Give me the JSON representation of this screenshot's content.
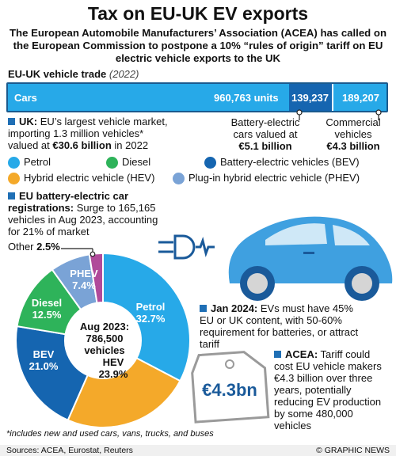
{
  "title": "Tax on EU-UK EV exports",
  "subtitle": "The European Automobile Manufacturers’ Association (ACEA) has called on the European Commission to postpone a 10% “rules of origin” tariff on EU electric vehicle exports to the UK",
  "trade": {
    "heading": "EU-UK vehicle trade",
    "year": "(2022)",
    "cars_label": "Cars",
    "cars_value": "960,763 units",
    "bev_value": "139,237",
    "commercial_value": "189,207",
    "bev_note_line1": "Battery-electric",
    "bev_note_line2": "cars valued at",
    "bev_note_value": "€5.1 billion",
    "comm_note_line1": "Commercial",
    "comm_note_line2": "vehicles",
    "comm_note_value": "€4.3 billion"
  },
  "uk": {
    "label": "UK:",
    "line1": "EU’s largest vehicle market,",
    "line2": "importing 1.3 million vehicles*",
    "line3_prefix": "valued at ",
    "line3_value": "€30.6 billion",
    "line3_suffix": " in 2022"
  },
  "legend": {
    "petrol": "Petrol",
    "diesel": "Diesel",
    "bev": "Battery-electric vehicles (BEV)",
    "hev": "Hybrid electric vehicle (HEV)",
    "phev": "Plug-in hybrid electric vehicle (PHEV)"
  },
  "colors": {
    "petrol": "#27a9e8",
    "diesel": "#2eb35a",
    "bev": "#1565b0",
    "hev": "#f4a92a",
    "phev": "#7aa3d6",
    "other": "#b04a9a"
  },
  "registrations": {
    "label_line1": "EU battery-electric car",
    "label_line2": "registrations:",
    "line2_rest": " Surge to 165,165",
    "line3": "vehicles in Aug 2023, accounting",
    "line4": "for 21% of market"
  },
  "donut": {
    "center_line1": "Aug 2023:",
    "center_line2": "786,500",
    "center_line3": "vehicles",
    "segments": [
      {
        "name": "Petrol",
        "value": 32.7,
        "label": "32.7%"
      },
      {
        "name": "HEV",
        "value": 23.9,
        "label": "23.9%"
      },
      {
        "name": "BEV",
        "value": 21.0,
        "label": "21.0%"
      },
      {
        "name": "Diesel",
        "value": 12.5,
        "label": "12.5%"
      },
      {
        "name": "PHEV",
        "value": 7.4,
        "label": "7.4%"
      },
      {
        "name": "Other",
        "value": 2.5,
        "label": "2.5%"
      }
    ]
  },
  "jan2024": {
    "label": "Jan 2024:",
    "line1_rest": " EVs must have 45%",
    "line2": "EU or UK content, with 50-60%",
    "line3": "requirement for batteries, or attract",
    "line4": "tariff"
  },
  "acea": {
    "label": "ACEA:",
    "line1_rest": " Tariff could",
    "line2": "cost EU vehicle makers",
    "line3": "€4.3 billion over three",
    "line4": "years, potentially",
    "line5": "reducing EV production",
    "line6": "by some 480,000",
    "line7": "vehicles"
  },
  "price_tag": "€4.3bn",
  "footnote": "*includes new and used cars, vans, trucks, and buses",
  "sources": "Sources: ACEA,  Eurostat, Reuters",
  "credit": "© GRAPHIC NEWS"
}
